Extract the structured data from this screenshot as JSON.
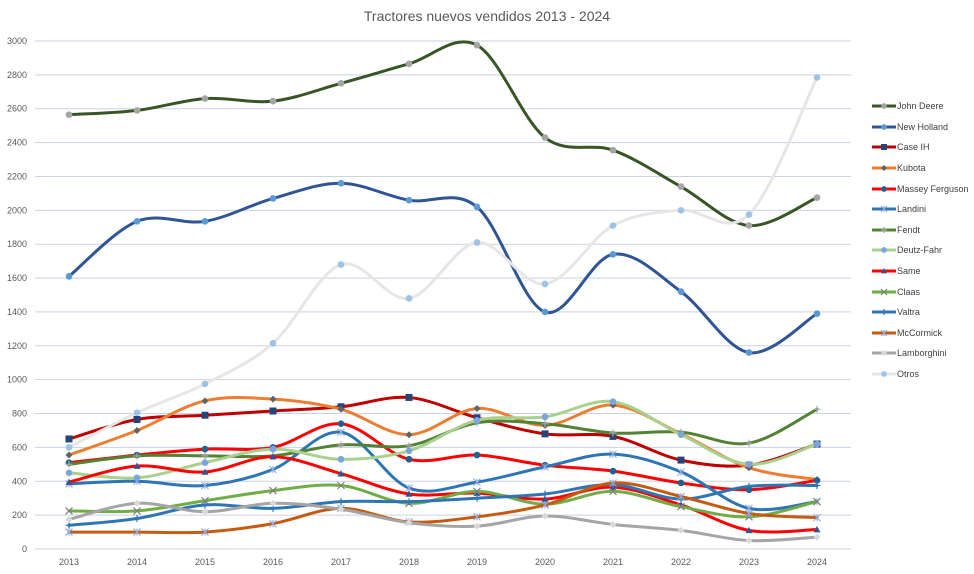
{
  "chart_data": {
    "type": "line",
    "title": "Tractores nuevos vendidos 2013 - 2024",
    "xlabel": "",
    "ylabel": "",
    "x": [
      "2013",
      "2014",
      "2015",
      "2016",
      "2017",
      "2018",
      "2019",
      "2020",
      "2021",
      "2022",
      "2023",
      "2024"
    ],
    "ylim": [
      0,
      3000
    ],
    "yticks": [
      0,
      200,
      400,
      600,
      800,
      1000,
      1200,
      1400,
      1600,
      1800,
      2000,
      2200,
      2400,
      2600,
      2800,
      3000
    ],
    "grid": true,
    "smooth": true,
    "legend_position": "right",
    "series": [
      {
        "name": "John Deere",
        "color": "#375623",
        "marker": "circle",
        "marker_color": "#a5a5a5",
        "values": [
          2565,
          2590,
          2660,
          2645,
          2750,
          2865,
          2975,
          2430,
          2355,
          2140,
          1910,
          2075
        ]
      },
      {
        "name": "New Holland",
        "color": "#2f5597",
        "marker": "circle",
        "marker_color": "#5b9bd5",
        "values": [
          1610,
          1935,
          1935,
          2070,
          2160,
          2060,
          2020,
          1400,
          1740,
          1520,
          1160,
          1390
        ]
      },
      {
        "name": "Case IH",
        "color": "#c00000",
        "marker": "square",
        "marker_color": "#264478",
        "values": [
          650,
          765,
          790,
          815,
          840,
          895,
          775,
          680,
          665,
          525,
          495,
          620
        ]
      },
      {
        "name": "Kubota",
        "color": "#ed7d31",
        "marker": "diamond",
        "marker_color": "#636363",
        "values": [
          555,
          700,
          875,
          885,
          825,
          675,
          830,
          730,
          850,
          680,
          480,
          410
        ]
      },
      {
        "name": "Massey Ferguson",
        "color": "#ff0000",
        "marker": "circle",
        "marker_color": "#255e91",
        "values": [
          510,
          555,
          590,
          600,
          740,
          530,
          555,
          495,
          460,
          390,
          350,
          405
        ]
      },
      {
        "name": "Landini",
        "color": "#2e75b6",
        "marker": "asterisk",
        "marker_color": "#8faadc",
        "values": [
          385,
          400,
          375,
          470,
          690,
          360,
          395,
          485,
          560,
          455,
          240,
          280
        ]
      },
      {
        "name": "Fendt",
        "color": "#548235",
        "marker": "plus",
        "marker_color": "#a5a5a5",
        "values": [
          500,
          550,
          550,
          550,
          615,
          610,
          745,
          740,
          685,
          690,
          625,
          825
        ]
      },
      {
        "name": "Deutz-Fahr",
        "color": "#a9d18e",
        "marker": "circle",
        "marker_color": "#7aa6dc",
        "values": [
          450,
          420,
          510,
          590,
          530,
          580,
          760,
          780,
          870,
          675,
          500,
          620
        ]
      },
      {
        "name": "Same",
        "color": "#ff0000",
        "marker": "triangle",
        "marker_color": "#2f5597",
        "values": [
          395,
          490,
          455,
          545,
          445,
          325,
          330,
          295,
          365,
          260,
          110,
          115
        ]
      },
      {
        "name": "Claas",
        "color": "#70ad47",
        "marker": "x",
        "marker_color": "#7f7f7f",
        "values": [
          225,
          225,
          285,
          345,
          375,
          270,
          340,
          265,
          340,
          250,
          190,
          280
        ]
      },
      {
        "name": "Valtra",
        "color": "#2e75b6",
        "marker": "plus",
        "marker_color": "#2e75b6",
        "values": [
          140,
          180,
          260,
          240,
          280,
          280,
          300,
          325,
          380,
          295,
          370,
          375
        ]
      },
      {
        "name": "McCormick",
        "color": "#c55a11",
        "marker": "asterisk",
        "marker_color": "#8faadc",
        "values": [
          100,
          100,
          100,
          150,
          240,
          160,
          190,
          260,
          390,
          310,
          210,
          185
        ]
      },
      {
        "name": "Lamborghini",
        "color": "#a5a5a5",
        "marker": "diamond",
        "marker_color": "#d9d9d9",
        "values": [
          175,
          270,
          220,
          270,
          235,
          155,
          135,
          195,
          145,
          110,
          50,
          70
        ]
      },
      {
        "name": "Otros",
        "color": "#e7e6e6",
        "marker": "circle",
        "marker_color": "#9dc3e6",
        "values": [
          600,
          805,
          975,
          1215,
          1680,
          1480,
          1810,
          1565,
          1910,
          2000,
          1975,
          2785
        ]
      }
    ]
  }
}
